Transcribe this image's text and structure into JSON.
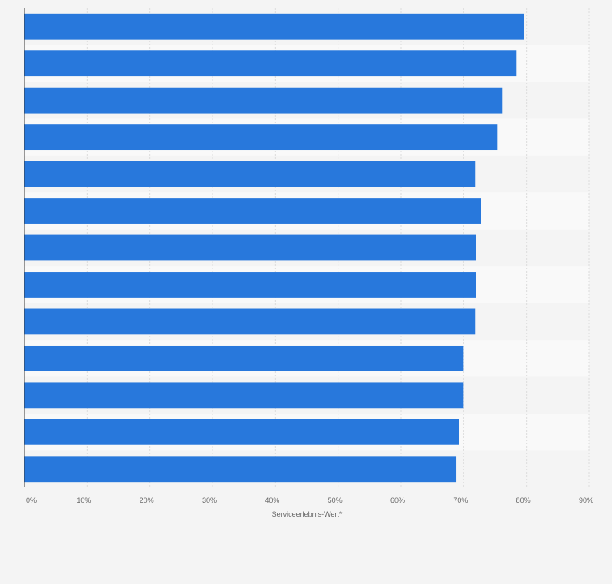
{
  "chart_data": {
    "type": "bar",
    "orientation": "horizontal",
    "title": "",
    "xlabel": "Serviceerlebnis-Wert*",
    "ylabel": "",
    "xlim": [
      0,
      90
    ],
    "xticks": [
      0,
      10,
      20,
      30,
      40,
      50,
      60,
      70,
      80,
      90
    ],
    "xtick_labels": [
      "0%",
      "10%",
      "20%",
      "30%",
      "40%",
      "50%",
      "60%",
      "70%",
      "80%",
      "90%"
    ],
    "categories": [
      "",
      "",
      "",
      "",
      "",
      "",
      "",
      "",
      "",
      "",
      "",
      "",
      ""
    ],
    "values": [
      79.6,
      78.4,
      76.2,
      75.3,
      71.8,
      72.8,
      72.0,
      72.0,
      71.8,
      70.0,
      70.0,
      69.2,
      68.8
    ],
    "grid": true,
    "bar_color": "#2878dc",
    "band_colors": [
      "#f4f4f4",
      "#f9f9f9"
    ],
    "background": "#f4f4f4"
  }
}
